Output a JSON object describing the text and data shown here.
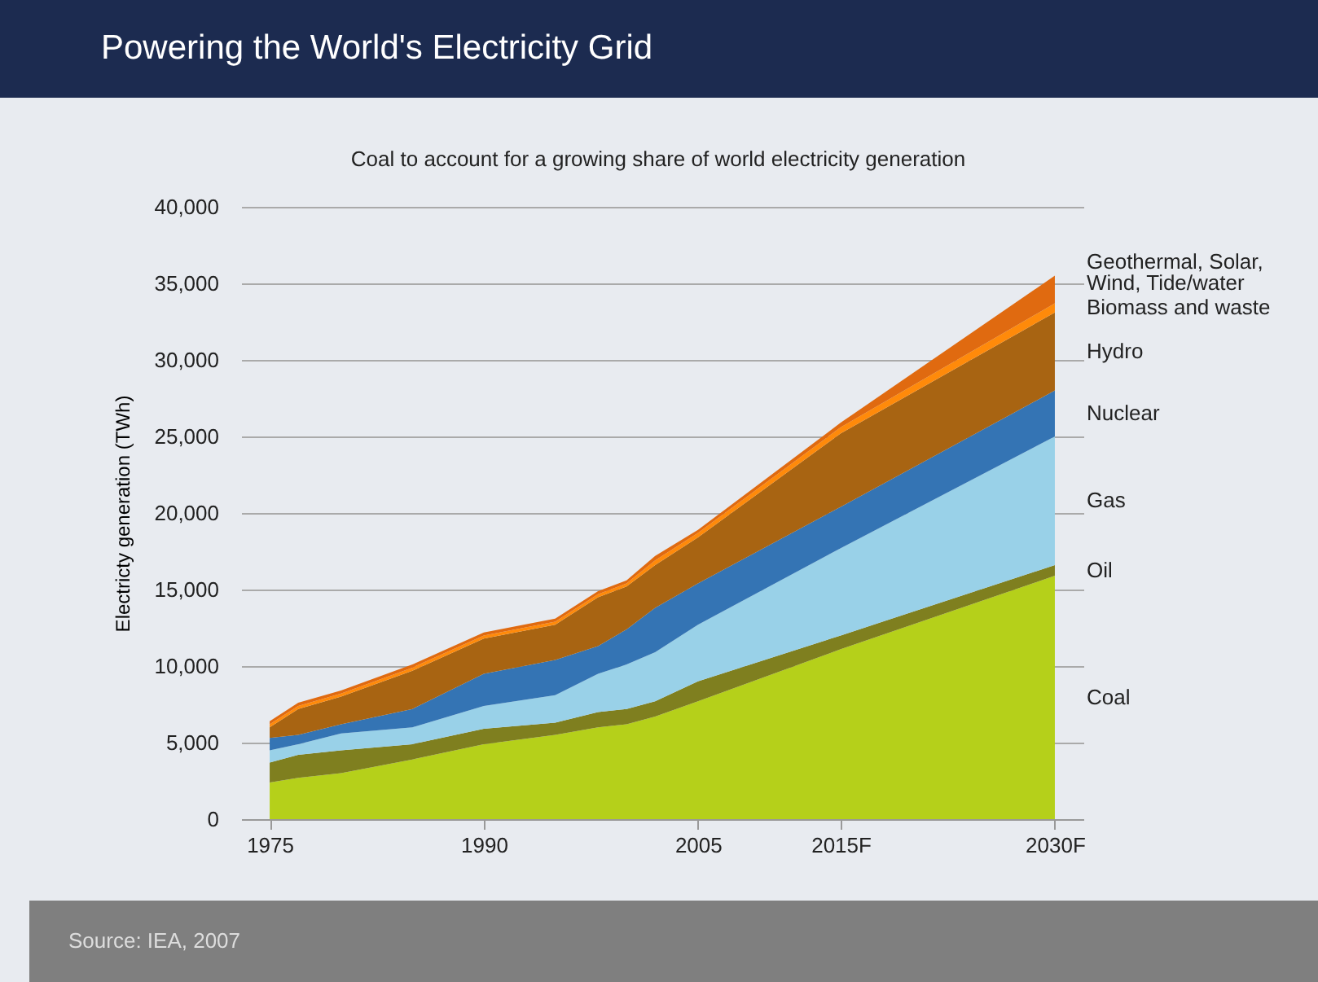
{
  "chart_data": {
    "type": "area",
    "stacked": true,
    "title": "Powering the World's Electricity Grid",
    "subtitle": "Coal to account for a growing share of world electricity generation",
    "ylabel": "Electricty generation (TWh)",
    "x": [
      1975,
      1977,
      1980,
      1985,
      1990,
      1995,
      1998,
      2000,
      2002,
      2005,
      2015,
      2030
    ],
    "series": [
      {
        "name": "Coal",
        "color": "#b5d01a",
        "values": [
          2400,
          2700,
          3000,
          3900,
          4900,
          5500,
          6000,
          6200,
          6700,
          7700,
          11100,
          15900
        ]
      },
      {
        "name": "Oil",
        "color": "#7f7f1f",
        "values": [
          1300,
          1500,
          1500,
          1000,
          1000,
          800,
          1000,
          1000,
          1000,
          1300,
          900,
          700
        ]
      },
      {
        "name": "Gas",
        "color": "#99d1e8",
        "values": [
          800,
          700,
          1100,
          1100,
          1500,
          1800,
          2500,
          2900,
          3200,
          3700,
          5700,
          8400
        ]
      },
      {
        "name": "Nuclear",
        "color": "#3474b4",
        "values": [
          800,
          600,
          600,
          1200,
          2100,
          2300,
          1800,
          2300,
          2900,
          2700,
          2700,
          3000
        ]
      },
      {
        "name": "Hydro",
        "color": "#a86412",
        "values": [
          700,
          1700,
          1800,
          2500,
          2300,
          2300,
          3200,
          2800,
          2800,
          3000,
          4800,
          5100
        ]
      },
      {
        "name": "Biomass and waste",
        "color": "#ff8a0a",
        "values": [
          200,
          200,
          200,
          200,
          200,
          200,
          200,
          200,
          300,
          300,
          400,
          600
        ]
      },
      {
        "name": "Geothermal, Solar, Wind, Tide/water",
        "color": "#e06a10",
        "values": [
          200,
          200,
          200,
          200,
          200,
          200,
          200,
          200,
          300,
          200,
          300,
          1800
        ]
      }
    ],
    "xlim": [
      1973,
      2032
    ],
    "xticks": [
      1975,
      1990,
      2005,
      {
        "value": 2015,
        "label": "2015F"
      },
      {
        "value": 2030,
        "label": "2030F"
      }
    ],
    "ylim": [
      0,
      40000
    ],
    "yticks": [
      0,
      {
        "value": 5000,
        "label": "5,000"
      },
      {
        "value": 10000,
        "label": "10,000"
      },
      {
        "value": 15000,
        "label": "15,000"
      },
      {
        "value": 20000,
        "label": "20,000"
      },
      {
        "value": 25000,
        "label": "25,000"
      },
      {
        "value": 30000,
        "label": "30,000"
      },
      {
        "value": 35000,
        "label": "35,000"
      },
      {
        "value": 40000,
        "label": "40,000"
      }
    ],
    "grid": "y",
    "legend": false,
    "annotations": [
      "Source: IEA, 2007"
    ]
  }
}
